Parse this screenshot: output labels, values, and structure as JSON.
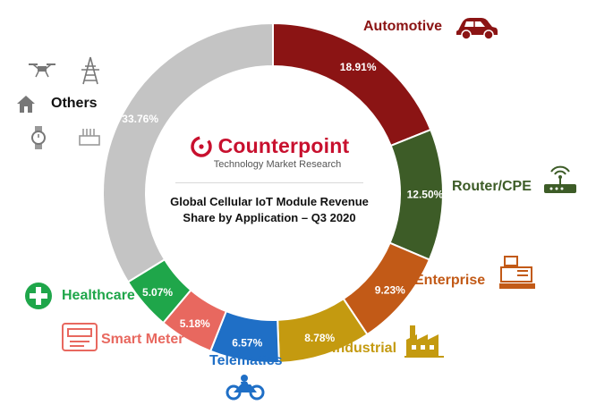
{
  "brand": {
    "name": "Counterpoint",
    "tagline": "Technology Market Research"
  },
  "title_line1": "Global Cellular IoT Module Revenue",
  "title_line2": "Share by Application – Q3 2020",
  "chart_data": {
    "type": "pie",
    "style": "donut",
    "title": "Global Cellular IoT Module Revenue Share by Application – Q3 2020",
    "slices": [
      {
        "name": "Automotive",
        "value": 18.91,
        "label": "18.91%",
        "color": "#8b1414",
        "icon": "car-icon"
      },
      {
        "name": "Router/CPE",
        "value": 12.5,
        "label": "12.50%",
        "color": "#3d5c27",
        "icon": "router-icon"
      },
      {
        "name": "Enterprise",
        "value": 9.23,
        "label": "9.23%",
        "color": "#c25a17",
        "icon": "cash-register-icon"
      },
      {
        "name": "Industrial",
        "value": 8.78,
        "label": "8.78%",
        "color": "#c49a10",
        "icon": "factory-icon"
      },
      {
        "name": "Telematics",
        "value": 6.57,
        "label": "6.57%",
        "color": "#1f6fc6",
        "icon": "motorcycle-icon"
      },
      {
        "name": "Smart Meter",
        "value": 5.18,
        "label": "5.18%",
        "color": "#e8685f",
        "icon": "meter-icon"
      },
      {
        "name": "Healthcare",
        "value": 5.07,
        "label": "5.07%",
        "color": "#1fa64a",
        "icon": "medical-cross-icon"
      },
      {
        "name": "Others",
        "value": 33.76,
        "label": "33.76%",
        "color": "#c4c4c4",
        "icon": "misc-devices-icon"
      }
    ],
    "category_label_colors": {
      "Automotive": "#8b1414",
      "Router/CPE": "#3d5c27",
      "Enterprise": "#c25a17",
      "Industrial": "#c49a10",
      "Telematics": "#1f6fc6",
      "Smart Meter": "#e8685f",
      "Healthcare": "#1fa64a",
      "Others": "#111111"
    }
  }
}
